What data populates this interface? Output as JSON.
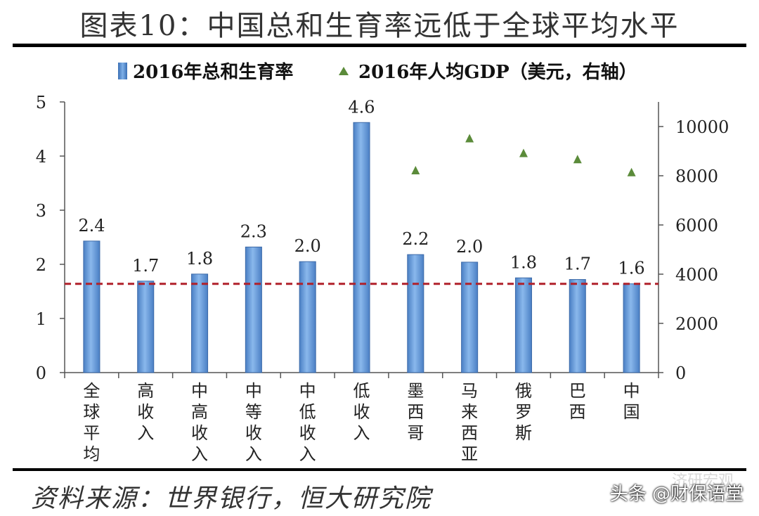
{
  "title": "图表10：中国总和生育率远低于全球平均水平",
  "source": "资料来源：世界银行，恒大研究院",
  "watermark": "头条 @财保语堂",
  "watermark_faded": "济研宏观",
  "colors": {
    "bar": "#4a7fc4",
    "bar_light": "#8ab8ec",
    "marker": "#5b8b3a",
    "ref_line": "#b0202a"
  },
  "chart_data": {
    "type": "bar",
    "categories": [
      "全球平均",
      "高收入",
      "中高收入",
      "中等收入",
      "中低收入",
      "低收入",
      "墨西哥",
      "马来西亚",
      "俄罗斯",
      "巴西",
      "中国"
    ],
    "series": [
      {
        "name": "2016年总和生育率",
        "type": "bar",
        "axis": "left",
        "values": [
          2.4,
          1.7,
          1.8,
          2.3,
          2.0,
          4.6,
          2.2,
          2.0,
          1.8,
          1.7,
          1.6
        ],
        "true_values": [
          2.43,
          1.69,
          1.82,
          2.32,
          2.05,
          4.62,
          2.18,
          2.04,
          1.75,
          1.72,
          1.64
        ]
      },
      {
        "name": "2016年人均GDP（美元，右轴）",
        "type": "scatter",
        "marker": "triangle",
        "axis": "right",
        "values": [
          null,
          null,
          null,
          null,
          null,
          null,
          8200,
          9500,
          8900,
          8650,
          8120
        ]
      }
    ],
    "reference_line": {
      "axis": "left",
      "value": 1.64,
      "style": "dashed"
    },
    "ylim_left": [
      0,
      5
    ],
    "yticks_left": [
      "0",
      "1",
      "2",
      "3",
      "4",
      "5"
    ],
    "ylim_right": [
      0,
      11000
    ],
    "yticks_right": [
      "0",
      "2000",
      "4000",
      "6000",
      "8000",
      "10000"
    ],
    "legend_position": "top"
  }
}
